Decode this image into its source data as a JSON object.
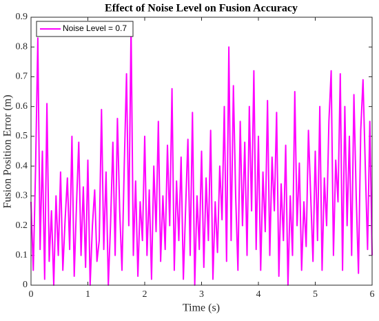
{
  "chart_data": {
    "type": "line",
    "title": "Effect of Noise Level on Fusion Accuracy",
    "xlabel": "Time (s)",
    "ylabel": "Fusion Position Error (m)",
    "xlim": [
      0,
      6
    ],
    "xticks": [
      0,
      1,
      2,
      3,
      4,
      5,
      6
    ],
    "ylim": [
      0,
      0.9
    ],
    "yticks": [
      0,
      0.1,
      0.2,
      0.3,
      0.4,
      0.5,
      0.6,
      0.7,
      0.8,
      0.9
    ],
    "grid": false,
    "legend": "northwest",
    "x": [
      0,
      0.04,
      0.08,
      0.12,
      0.16,
      0.2,
      0.24,
      0.28,
      0.32,
      0.36,
      0.4,
      0.44,
      0.48,
      0.52,
      0.56,
      0.6,
      0.64,
      0.68,
      0.72,
      0.76,
      0.8,
      0.84,
      0.88,
      0.92,
      0.96,
      1,
      1.04,
      1.08,
      1.12,
      1.16,
      1.2,
      1.24,
      1.28,
      1.32,
      1.36,
      1.4,
      1.44,
      1.48,
      1.52,
      1.56,
      1.6,
      1.64,
      1.68,
      1.72,
      1.76,
      1.8,
      1.84,
      1.88,
      1.92,
      1.96,
      2,
      2.04,
      2.08,
      2.12,
      2.16,
      2.2,
      2.24,
      2.28,
      2.32,
      2.36,
      2.4,
      2.44,
      2.48,
      2.52,
      2.56,
      2.6,
      2.64,
      2.68,
      2.72,
      2.76,
      2.8,
      2.84,
      2.88,
      2.92,
      2.96,
      3,
      3.04,
      3.08,
      3.12,
      3.16,
      3.2,
      3.24,
      3.28,
      3.32,
      3.36,
      3.4,
      3.44,
      3.48,
      3.52,
      3.56,
      3.6,
      3.64,
      3.68,
      3.72,
      3.76,
      3.8,
      3.84,
      3.88,
      3.92,
      3.96,
      4,
      4.04,
      4.08,
      4.12,
      4.16,
      4.2,
      4.24,
      4.28,
      4.32,
      4.36,
      4.4,
      4.44,
      4.48,
      4.52,
      4.56,
      4.6,
      4.64,
      4.68,
      4.72,
      4.76,
      4.8,
      4.84,
      4.88,
      4.92,
      4.96,
      5,
      5.04,
      5.08,
      5.12,
      5.16,
      5.2,
      5.24,
      5.28,
      5.32,
      5.36,
      5.4,
      5.44,
      5.48,
      5.52,
      5.56,
      5.6,
      5.64,
      5.68,
      5.72,
      5.76,
      5.8,
      5.84,
      5.88,
      5.92,
      5.96,
      6
    ],
    "series": [
      {
        "name": "Noise Level = 0.7",
        "color": "#ff00ff",
        "values": [
          0.28,
          0.05,
          0.39,
          0.83,
          0.12,
          0.45,
          0.02,
          0.61,
          0.08,
          0.25,
          0.0,
          0.3,
          0.1,
          0.38,
          0.05,
          0.22,
          0.36,
          0.12,
          0.5,
          0.03,
          0.27,
          0.48,
          0.1,
          0.33,
          0.06,
          0.42,
          0.0,
          0.2,
          0.32,
          0.08,
          0.15,
          0.59,
          0.12,
          0.38,
          0.0,
          0.21,
          0.48,
          0.1,
          0.56,
          0.25,
          0.05,
          0.4,
          0.71,
          0.2,
          0.87,
          0.1,
          0.35,
          0.03,
          0.28,
          0.15,
          0.5,
          0.1,
          0.32,
          0.02,
          0.4,
          0.18,
          0.55,
          0.08,
          0.3,
          0.12,
          0.47,
          0.2,
          0.66,
          0.05,
          0.35,
          0.15,
          0.43,
          0.02,
          0.26,
          0.49,
          0.1,
          0.58,
          0.0,
          0.3,
          0.12,
          0.45,
          0.06,
          0.36,
          0.15,
          0.52,
          0.02,
          0.28,
          0.11,
          0.4,
          0.22,
          0.6,
          0.08,
          0.8,
          0.15,
          0.67,
          0.3,
          0.05,
          0.55,
          0.2,
          0.48,
          0.1,
          0.6,
          0.25,
          0.72,
          0.12,
          0.5,
          0.05,
          0.38,
          0.18,
          0.62,
          0.1,
          0.43,
          0.25,
          0.58,
          0.03,
          0.34,
          0.15,
          0.47,
          0.0,
          0.3,
          0.1,
          0.65,
          0.2,
          0.41,
          0.05,
          0.28,
          0.13,
          0.52,
          0.3,
          0.08,
          0.45,
          0.15,
          0.6,
          0.05,
          0.36,
          0.2,
          0.55,
          0.72,
          0.1,
          0.42,
          0.28,
          0.71,
          0.05,
          0.6,
          0.2,
          0.5,
          0.1,
          0.64,
          0.3,
          0.04,
          0.52,
          0.69,
          0.4,
          0.12,
          0.55,
          0.1
        ]
      }
    ]
  }
}
